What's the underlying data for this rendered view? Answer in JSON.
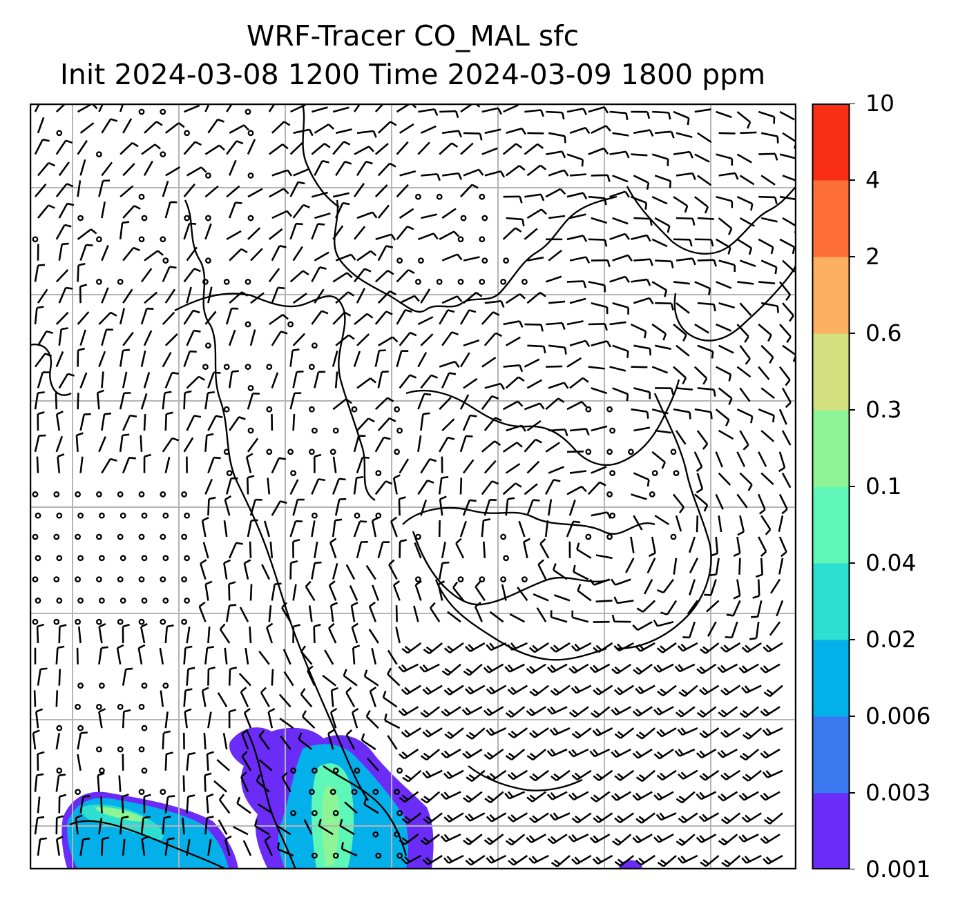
{
  "title": {
    "line1": "WRF-Tracer CO_MAL sfc",
    "line2": "Init 2024-03-08 1200 Time 2024-03-09 1800 ppm"
  },
  "colorbar": {
    "levels": [
      "0.001",
      "0.003",
      "0.006",
      "0.02",
      "0.04",
      "0.1",
      "0.3",
      "0.6",
      "2",
      "4",
      "10"
    ],
    "colors": [
      "#6a2cf6",
      "#3a78f0",
      "#03b0ea",
      "#2ddfd1",
      "#5ff7b8",
      "#8ef596",
      "#d2e080",
      "#fdb060",
      "#fe7038",
      "#fa2e14"
    ]
  },
  "map": {
    "field": "CO_MAL tracer concentration with surface wind barbs",
    "colors": {
      "frame": "#000000",
      "grid": "#b4b4b4",
      "barb": "#000000",
      "coast": "#000000"
    }
  }
}
